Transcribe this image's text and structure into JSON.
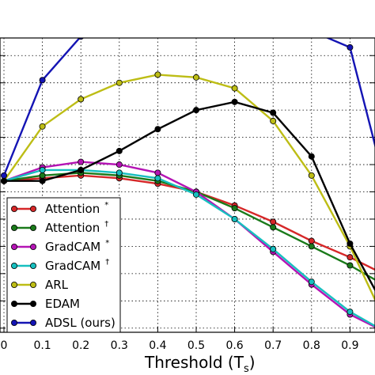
{
  "chart_data": {
    "type": "line",
    "xlabel": "Threshold (T",
    "xlabel_sub": "s",
    "xlabel_close": ")",
    "x": [
      0,
      0.1,
      0.2,
      0.3,
      0.4,
      0.5,
      0.6,
      0.7,
      0.8,
      0.9,
      1.0
    ],
    "x_tick_labels": [
      "0",
      "0.1",
      "0.2",
      "0.3",
      "0.4",
      "0.5",
      "0.6",
      "0.7",
      "0.8",
      "0.9"
    ],
    "xlim": [
      0,
      0.98
    ],
    "ylim": [
      -0.1,
      1.0
    ],
    "grid": true,
    "legend_position": "lower-left",
    "series": [
      {
        "name": "Attention",
        "sup": "*",
        "color": "#d62728",
        "values": [
          0.44,
          0.45,
          0.46,
          0.45,
          0.43,
          0.4,
          0.35,
          0.29,
          0.22,
          0.16,
          0.09
        ]
      },
      {
        "name": "Attention",
        "sup": "†",
        "color": "#1a7a1a",
        "values": [
          0.44,
          0.46,
          0.47,
          0.46,
          0.44,
          0.4,
          0.34,
          0.27,
          0.2,
          0.13,
          0.05
        ]
      },
      {
        "name": "GradCAM",
        "sup": "*",
        "color": "#b414b4",
        "values": [
          0.44,
          0.49,
          0.51,
          0.5,
          0.47,
          0.4,
          0.3,
          0.18,
          0.06,
          -0.05,
          -0.12
        ]
      },
      {
        "name": "GradCAM",
        "sup": "†",
        "color": "#17bfbf",
        "values": [
          0.44,
          0.48,
          0.48,
          0.47,
          0.45,
          0.39,
          0.3,
          0.19,
          0.07,
          -0.04,
          -0.12
        ]
      },
      {
        "name": "ARL",
        "color": "#bdbd15",
        "values": [
          0.44,
          0.64,
          0.74,
          0.8,
          0.83,
          0.82,
          0.78,
          0.66,
          0.46,
          0.2,
          -0.1
        ]
      },
      {
        "name": "EDAM",
        "color": "#000000",
        "values": [
          0.44,
          0.44,
          0.48,
          0.55,
          0.63,
          0.7,
          0.73,
          0.69,
          0.53,
          0.21,
          -0.05
        ]
      },
      {
        "name": "ADSL (ours)",
        "color": "#1414b4",
        "values": [
          0.46,
          0.81,
          0.97,
          1.02,
          1.04,
          1.045,
          1.04,
          1.02,
          0.99,
          0.93,
          0.38
        ]
      }
    ]
  }
}
